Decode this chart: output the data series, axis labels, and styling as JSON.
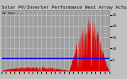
{
  "title": "Solar PV/Inverter Performance West Array Actual & Average Power Output",
  "avg_label": "kW (Net) ---",
  "background_color": "#c0c0c0",
  "plot_bg_color": "#a0a0a0",
  "grid_color": "#ffffff",
  "bar_color": "#dd0000",
  "avg_line_color": "#0000ff",
  "avg_line_y": 5.5,
  "ylim": [
    0,
    27
  ],
  "yticks": [
    5,
    10,
    15,
    20,
    25
  ],
  "title_fontsize": 4.2,
  "tick_fontsize": 3.2,
  "num_points": 350
}
